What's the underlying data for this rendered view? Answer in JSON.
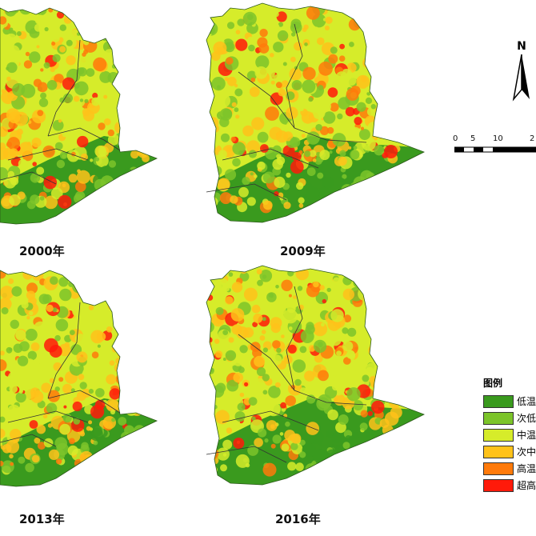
{
  "panels": [
    {
      "year_label": "2000年"
    },
    {
      "year_label": "2009年"
    },
    {
      "year_label": "2013年"
    },
    {
      "year_label": "2016年"
    }
  ],
  "north_arrow": {
    "label": "N",
    "icon": "north-arrow-icon"
  },
  "scale_bar": {
    "ticks": [
      "0",
      "5",
      "10",
      "2"
    ]
  },
  "legend": {
    "title": "图例",
    "items": [
      {
        "label": "低温",
        "color": "#3a9a1e"
      },
      {
        "label": "次低",
        "color": "#7cc42a"
      },
      {
        "label": "中温",
        "color": "#d6ec2a"
      },
      {
        "label": "次中",
        "color": "#ffc21a"
      },
      {
        "label": "高温",
        "color": "#ff7a0a"
      },
      {
        "label": "超高",
        "color": "#ff1a0a"
      }
    ]
  }
}
